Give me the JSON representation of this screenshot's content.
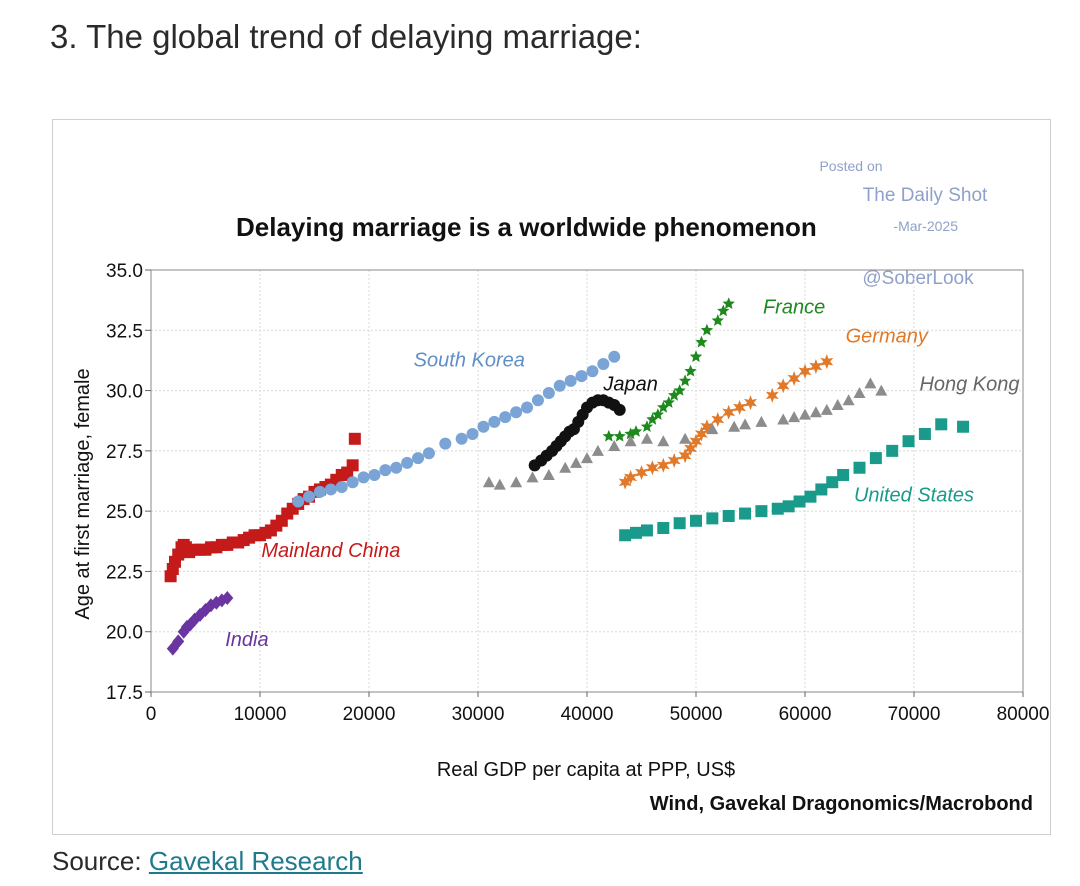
{
  "page": {
    "heading": "3. The global trend of delaying marriage:",
    "source_prefix": "Source:",
    "source_link": "Gavekal Research"
  },
  "watermark": {
    "posted_on": "Posted on",
    "site": "The Daily Shot",
    "date": "-Mar-2025",
    "handle": "@SoberLook"
  },
  "chart_data": {
    "type": "scatter",
    "title": "Delaying marriage is a worldwide phenomenon",
    "xlabel": "Real GDP per capita at PPP, US$",
    "ylabel": "Age at first marriage, female",
    "credit": "Wind, Gavekal Dragonomics/Macrobond",
    "xlim": [
      0,
      80000
    ],
    "ylim": [
      17.5,
      35.0
    ],
    "xticks": [
      "0",
      "10000",
      "20000",
      "30000",
      "40000",
      "50000",
      "60000",
      "70000",
      "80000"
    ],
    "yticks": [
      "17.5",
      "20.0",
      "22.5",
      "25.0",
      "27.5",
      "30.0",
      "32.5",
      "35.0"
    ],
    "ytick_values": [
      17.5,
      20.0,
      22.5,
      25.0,
      27.5,
      30.0,
      32.5,
      35.0
    ],
    "xtick_values": [
      0,
      10000,
      20000,
      30000,
      40000,
      50000,
      60000,
      70000,
      80000
    ],
    "grid": true,
    "series": [
      {
        "name": "India",
        "color": "#6a35a0",
        "marker": "diamond",
        "x": [
          2000,
          2500,
          3000,
          3300,
          3600,
          4000,
          4500,
          5000,
          5500,
          6000,
          6500,
          7000
        ],
        "y": [
          19.3,
          19.6,
          20.0,
          20.2,
          20.3,
          20.5,
          20.7,
          20.9,
          21.1,
          21.2,
          21.3,
          21.4
        ]
      },
      {
        "name": "Mainland China",
        "color": "#c41a1a",
        "marker": "square",
        "x": [
          1800,
          2000,
          2200,
          2500,
          2800,
          3000,
          3200,
          3500,
          4000,
          4500,
          5000,
          5500,
          6000,
          6500,
          7000,
          7500,
          8000,
          8500,
          9000,
          9500,
          10000,
          10500,
          11000,
          11500,
          12000,
          12500,
          13000,
          13500,
          14000,
          14500,
          15000,
          15500,
          16000,
          16500,
          17000,
          17500,
          18000,
          18500,
          18700
        ],
        "y": [
          22.3,
          22.6,
          22.9,
          23.2,
          23.5,
          23.6,
          23.5,
          23.3,
          23.4,
          23.4,
          23.4,
          23.5,
          23.5,
          23.6,
          23.6,
          23.7,
          23.7,
          23.8,
          23.9,
          24.0,
          24.0,
          24.1,
          24.2,
          24.4,
          24.6,
          24.9,
          25.1,
          25.3,
          25.5,
          25.6,
          25.8,
          25.9,
          26.0,
          26.1,
          26.3,
          26.5,
          26.6,
          26.9,
          28.0
        ]
      },
      {
        "name": "South Korea",
        "color": "#7aa3d6",
        "marker": "circle",
        "x": [
          13500,
          14500,
          15500,
          16500,
          17500,
          18500,
          19500,
          20500,
          21500,
          22500,
          23500,
          24500,
          25500,
          27000,
          28500,
          29500,
          30500,
          31500,
          32500,
          33500,
          34500,
          35500,
          36500,
          37500,
          38500,
          39500,
          40500,
          41500,
          42500
        ],
        "y": [
          25.4,
          25.6,
          25.8,
          25.9,
          26.0,
          26.2,
          26.4,
          26.5,
          26.7,
          26.8,
          27.0,
          27.2,
          27.4,
          27.8,
          28.0,
          28.2,
          28.5,
          28.7,
          28.9,
          29.1,
          29.3,
          29.6,
          29.9,
          30.2,
          30.4,
          30.6,
          30.8,
          31.1,
          31.4
        ]
      },
      {
        "name": "Japan",
        "color": "#111111",
        "marker": "circle",
        "x": [
          35200,
          35800,
          36300,
          36800,
          37200,
          37600,
          38000,
          38400,
          38800,
          39200,
          39600,
          40000,
          40500,
          41000,
          41500,
          42000,
          42500,
          43000
        ],
        "y": [
          26.9,
          27.1,
          27.3,
          27.5,
          27.7,
          27.9,
          28.1,
          28.3,
          28.4,
          28.7,
          29.0,
          29.3,
          29.5,
          29.6,
          29.6,
          29.5,
          29.4,
          29.2
        ]
      },
      {
        "name": "France",
        "color": "#1e8a1e",
        "marker": "star",
        "x": [
          42000,
          43000,
          44000,
          44500,
          45500,
          46000,
          46500,
          47000,
          47500,
          48000,
          48500,
          49000,
          49500,
          50000,
          50500,
          51000,
          52000,
          52500,
          53000
        ],
        "y": [
          28.1,
          28.1,
          28.2,
          28.3,
          28.5,
          28.8,
          29.0,
          29.3,
          29.5,
          29.8,
          30.0,
          30.4,
          30.8,
          31.4,
          32.0,
          32.5,
          32.9,
          33.3,
          33.6
        ]
      },
      {
        "name": "Germany",
        "color": "#e07a2a",
        "marker": "asterisk",
        "x": [
          43500,
          44000,
          45000,
          46000,
          47000,
          48000,
          49000,
          49500,
          50000,
          50500,
          51000,
          52000,
          53000,
          54000,
          55000,
          57000,
          58000,
          59000,
          60000,
          61000,
          62000
        ],
        "y": [
          26.2,
          26.4,
          26.6,
          26.8,
          26.9,
          27.1,
          27.3,
          27.6,
          27.9,
          28.2,
          28.5,
          28.8,
          29.1,
          29.3,
          29.5,
          29.8,
          30.2,
          30.5,
          30.8,
          31.0,
          31.2
        ]
      },
      {
        "name": "Hong Kong",
        "color": "#8c8c8c",
        "marker": "triangle",
        "x": [
          31000,
          32000,
          33500,
          35000,
          36500,
          38000,
          39000,
          40000,
          41000,
          42500,
          44000,
          45500,
          47000,
          49000,
          51500,
          53500,
          54500,
          56000,
          58000,
          59000,
          60000,
          61000,
          62000,
          63000,
          64000,
          65000,
          66000,
          67000
        ],
        "y": [
          26.2,
          26.1,
          26.2,
          26.4,
          26.5,
          26.8,
          27.0,
          27.2,
          27.5,
          27.7,
          27.9,
          28.0,
          27.9,
          28.0,
          28.4,
          28.5,
          28.6,
          28.7,
          28.8,
          28.9,
          29.0,
          29.1,
          29.2,
          29.4,
          29.6,
          29.9,
          30.3,
          30.0
        ]
      },
      {
        "name": "United States",
        "color": "#1a9a8a",
        "marker": "square",
        "x": [
          43500,
          44500,
          45500,
          47000,
          48500,
          50000,
          51500,
          53000,
          54500,
          56000,
          57500,
          58500,
          59500,
          60500,
          61500,
          62500,
          63500,
          65000,
          66500,
          68000,
          69500,
          71000,
          72500,
          74500
        ],
        "y": [
          24.0,
          24.1,
          24.2,
          24.3,
          24.5,
          24.6,
          24.7,
          24.8,
          24.9,
          25.0,
          25.1,
          25.2,
          25.4,
          25.6,
          25.9,
          26.2,
          26.5,
          26.8,
          27.2,
          27.5,
          27.9,
          28.2,
          28.6,
          28.5
        ]
      }
    ],
    "series_labels": [
      {
        "name": "India",
        "text": "India",
        "color": "#6a35a0"
      },
      {
        "name": "Mainland China",
        "text": "Mainland China",
        "color": "#c41a1a"
      },
      {
        "name": "South Korea",
        "text": "South Korea",
        "color": "#5f8fc9"
      },
      {
        "name": "Japan",
        "text": "Japan",
        "color": "#111111"
      },
      {
        "name": "France",
        "text": "France",
        "color": "#1e8a1e"
      },
      {
        "name": "Germany",
        "text": "Germany",
        "color": "#e07a2a"
      },
      {
        "name": "Hong Kong",
        "text": "Hong Kong",
        "color": "#666666"
      },
      {
        "name": "United States",
        "text": "United States",
        "color": "#1a9a8a"
      }
    ]
  }
}
